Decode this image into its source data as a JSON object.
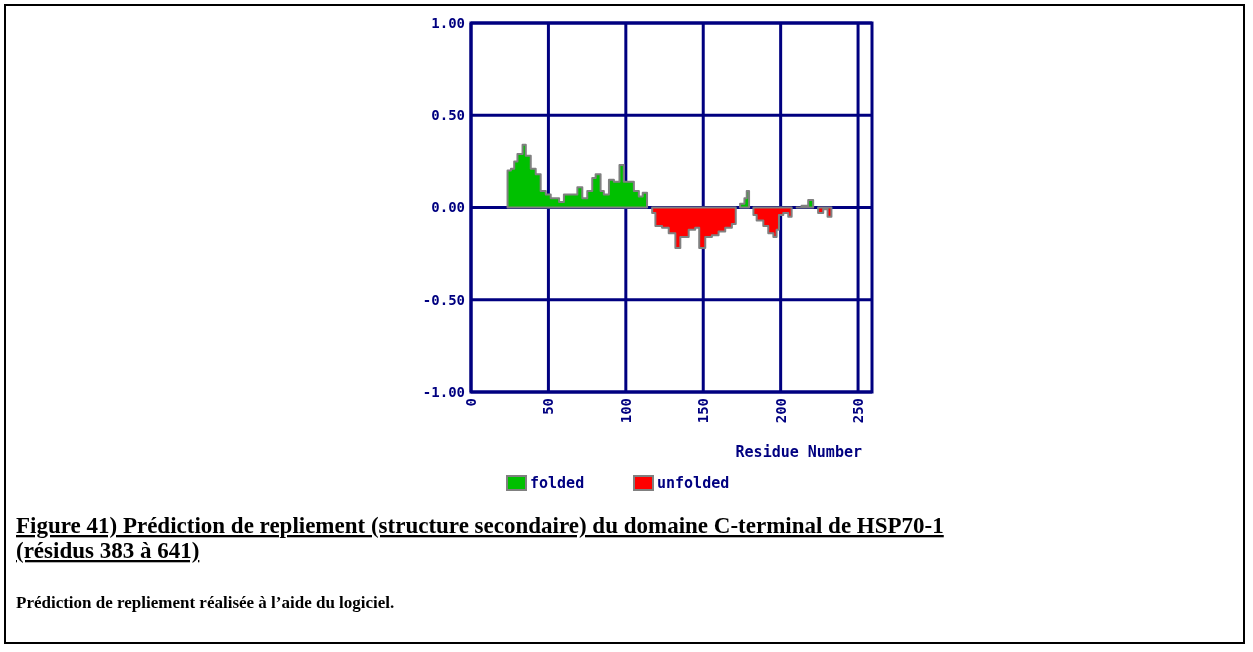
{
  "chart_data": {
    "type": "area",
    "title": "Figure 41) Prédiction de repliement (structure secondaire) du domaine C-terminal de HSP70-1 (résidus 383 à 641)",
    "xlabel": "Residue Number",
    "annotations": [
      "Prédiction de repliement réalisée à l’aide du logiciel."
    ],
    "x": [
      23.6,
      25.8,
      27.9,
      30,
      33.3,
      35.4,
      38.6,
      41.8,
      45,
      48.3,
      51.5,
      56.9,
      60,
      64.4,
      68.7,
      71.9,
      75.1,
      78.3,
      80.5,
      83.7,
      85.8,
      89.1,
      92.3,
      95.9,
      98.7,
      103,
      105.2,
      108.4,
      110.9,
      113.7,
      117,
      119.1,
      123.4,
      127.7,
      132,
      135.2,
      140.6,
      144.8,
      147.4,
      151.3,
      155.6,
      159.9,
      164.2,
      168.5,
      171,
      173.8,
      176.6,
      178.1,
      179.6,
      182.4,
      184.5,
      188.8,
      192,
      195.3,
      197.4,
      198.9,
      201.7,
      204.9,
      207.1,
      210.3,
      213.5,
      217.8,
      221,
      224.2,
      227.5,
      230.3,
      232.8
    ],
    "series": [
      {
        "name": "folded",
        "color": "#00c000",
        "values": [
          0.2,
          0.21,
          0.25,
          0.29,
          0.34,
          0.28,
          0.21,
          0.18,
          0.09,
          0.07,
          0.05,
          0.03,
          0.07,
          0.07,
          0.11,
          0.05,
          0.09,
          0.16,
          0.18,
          0.09,
          0.07,
          0.15,
          0.14,
          0.23,
          0.14,
          0.14,
          0.09,
          0.06,
          0.08,
          0.01,
          null,
          null,
          null,
          null,
          null,
          null,
          null,
          null,
          null,
          null,
          null,
          null,
          null,
          null,
          null,
          0.02,
          0.05,
          0.09,
          0.02,
          null,
          null,
          null,
          null,
          null,
          null,
          null,
          null,
          null,
          null,
          0,
          0.01,
          0.04,
          0,
          null,
          null,
          null,
          null
        ]
      },
      {
        "name": "unfolded",
        "color": "#ff0000",
        "values": [
          null,
          null,
          null,
          null,
          null,
          null,
          null,
          null,
          null,
          null,
          null,
          null,
          null,
          null,
          null,
          null,
          null,
          null,
          null,
          null,
          null,
          null,
          null,
          null,
          null,
          null,
          null,
          null,
          null,
          null,
          -0.03,
          -0.1,
          -0.11,
          -0.14,
          -0.22,
          -0.16,
          -0.12,
          -0.11,
          -0.22,
          -0.16,
          -0.15,
          -0.13,
          -0.11,
          -0.09,
          -0.04,
          null,
          null,
          null,
          null,
          -0.04,
          -0.07,
          -0.1,
          -0.14,
          -0.16,
          -0.12,
          -0.04,
          -0.03,
          -0.05,
          -0.01,
          null,
          null,
          null,
          null,
          -0.03,
          -0.01,
          -0.05,
          -0.01
        ]
      }
    ],
    "xlim": [
      0,
      259
    ],
    "xticks": [
      0,
      50,
      100,
      150,
      200,
      250
    ],
    "ylim": [
      -1,
      1
    ],
    "yticks": [
      {
        "value": 1,
        "label": "1.00"
      },
      {
        "value": 0.5,
        "label": "0.50"
      },
      {
        "value": 0,
        "label": "0.00"
      },
      {
        "value": -0.5,
        "label": "-0.50"
      },
      {
        "value": -1,
        "label": "-1.00"
      }
    ],
    "grid": true,
    "legend": "bottom"
  }
}
